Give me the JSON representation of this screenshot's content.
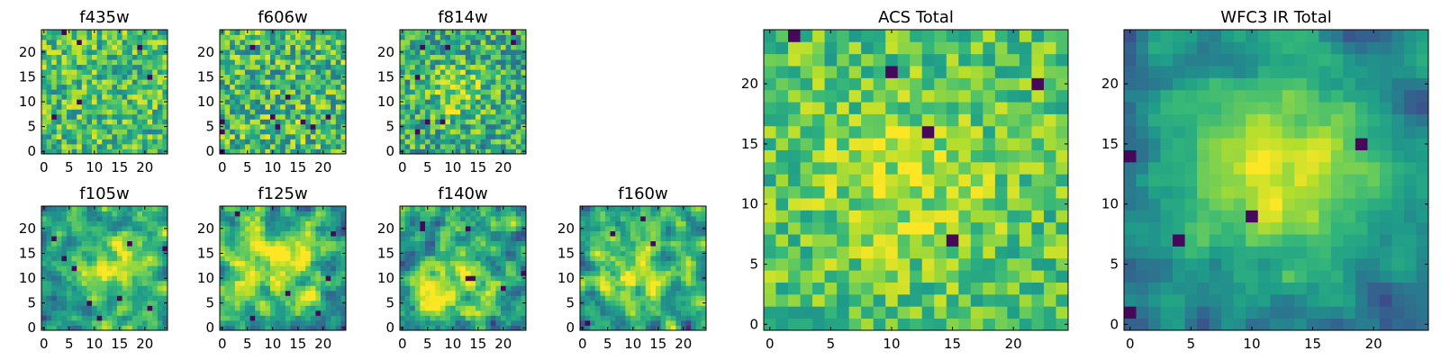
{
  "chart_data": [
    {
      "type": "heatmap",
      "title": "f435w",
      "xticks": [
        "0",
        "5",
        "10",
        "15",
        "20"
      ],
      "yticks": [
        "0",
        "5",
        "10",
        "15",
        "20"
      ],
      "xlim": [
        -0.5,
        24.5
      ],
      "ylim": [
        -0.5,
        24.5
      ],
      "grid_size": 25,
      "colormap": "viridis",
      "pattern": "noise",
      "peak": [
        12,
        12
      ],
      "width": 6,
      "mean": 0.7,
      "amplitude": 0.0,
      "noise": 0.26,
      "seed": 11
    },
    {
      "type": "heatmap",
      "title": "f606w",
      "xticks": [
        "0",
        "5",
        "10",
        "15",
        "20"
      ],
      "yticks": [
        "0",
        "5",
        "10",
        "15",
        "20"
      ],
      "xlim": [
        -0.5,
        24.5
      ],
      "ylim": [
        -0.5,
        24.5
      ],
      "grid_size": 25,
      "colormap": "viridis",
      "pattern": "noise",
      "peak": [
        12,
        12
      ],
      "width": 6,
      "mean": 0.68,
      "amplitude": 0.0,
      "noise": 0.3,
      "seed": 23
    },
    {
      "type": "heatmap",
      "title": "f814w",
      "xticks": [
        "0",
        "5",
        "10",
        "15",
        "20"
      ],
      "yticks": [
        "0",
        "5",
        "10",
        "15",
        "20"
      ],
      "xlim": [
        -0.5,
        24.5
      ],
      "ylim": [
        -0.5,
        24.5
      ],
      "grid_size": 25,
      "colormap": "viridis",
      "pattern": "noise",
      "peak": [
        11,
        12
      ],
      "width": 4,
      "mean": 0.62,
      "amplitude": 0.22,
      "noise": 0.28,
      "seed": 37
    },
    {
      "type": "heatmap",
      "title": "f105w",
      "xticks": [
        "0",
        "5",
        "10",
        "15",
        "20"
      ],
      "yticks": [
        "0",
        "5",
        "10",
        "15",
        "20"
      ],
      "xlim": [
        -0.5,
        24.5
      ],
      "ylim": [
        -0.5,
        24.5
      ],
      "grid_size": 25,
      "colormap": "viridis",
      "pattern": "smooth",
      "peak": [
        14,
        12
      ],
      "width": 5,
      "mean": 0.55,
      "amplitude": 0.4,
      "noise": 0.28,
      "seed": 41
    },
    {
      "type": "heatmap",
      "title": "f125w",
      "xticks": [
        "0",
        "5",
        "10",
        "15",
        "20"
      ],
      "yticks": [
        "0",
        "5",
        "10",
        "15",
        "20"
      ],
      "xlim": [
        -0.5,
        24.5
      ],
      "ylim": [
        -0.5,
        24.5
      ],
      "grid_size": 25,
      "colormap": "viridis",
      "pattern": "smooth",
      "peak": [
        12,
        14
      ],
      "width": 6,
      "mean": 0.6,
      "amplitude": 0.32,
      "noise": 0.3,
      "seed": 53
    },
    {
      "type": "heatmap",
      "title": "f140w",
      "xticks": [
        "0",
        "5",
        "10",
        "15",
        "20"
      ],
      "yticks": [
        "0",
        "5",
        "10",
        "15",
        "20"
      ],
      "xlim": [
        -0.5,
        24.5
      ],
      "ylim": [
        -0.5,
        24.5
      ],
      "grid_size": 25,
      "colormap": "viridis",
      "pattern": "smooth",
      "peak": [
        9,
        9
      ],
      "width": 6,
      "mean": 0.56,
      "amplitude": 0.32,
      "noise": 0.32,
      "seed": 67
    },
    {
      "type": "heatmap",
      "title": "f160w",
      "xticks": [
        "0",
        "5",
        "10",
        "15",
        "20"
      ],
      "yticks": [
        "0",
        "5",
        "10",
        "15",
        "20"
      ],
      "xlim": [
        -0.5,
        24.5
      ],
      "ylim": [
        -0.5,
        24.5
      ],
      "grid_size": 25,
      "colormap": "viridis",
      "pattern": "smooth",
      "peak": [
        10,
        11
      ],
      "width": 6,
      "mean": 0.56,
      "amplitude": 0.36,
      "noise": 0.3,
      "seed": 79
    },
    {
      "type": "heatmap",
      "title": "ACS Total",
      "xticks": [
        "0",
        "5",
        "10",
        "15",
        "20"
      ],
      "yticks": [
        "0",
        "5",
        "10",
        "15",
        "20"
      ],
      "xlim": [
        -0.5,
        24.5
      ],
      "ylim": [
        -0.5,
        24.5
      ],
      "grid_size": 25,
      "colormap": "viridis",
      "pattern": "noise",
      "peak": [
        11,
        12
      ],
      "width": 5,
      "mean": 0.72,
      "amplitude": 0.16,
      "noise": 0.2,
      "seed": 97
    },
    {
      "type": "heatmap",
      "title": "WFC3 IR Total",
      "xticks": [
        "0",
        "5",
        "10",
        "15",
        "20"
      ],
      "yticks": [
        "0",
        "5",
        "10",
        "15",
        "20"
      ],
      "xlim": [
        -0.5,
        24.5
      ],
      "ylim": [
        -0.5,
        24.5
      ],
      "grid_size": 25,
      "colormap": "viridis",
      "pattern": "smooth",
      "peak": [
        12,
        13
      ],
      "width": 7,
      "mean": 0.36,
      "amplitude": 0.56,
      "noise": 0.16,
      "seed": 113
    }
  ]
}
